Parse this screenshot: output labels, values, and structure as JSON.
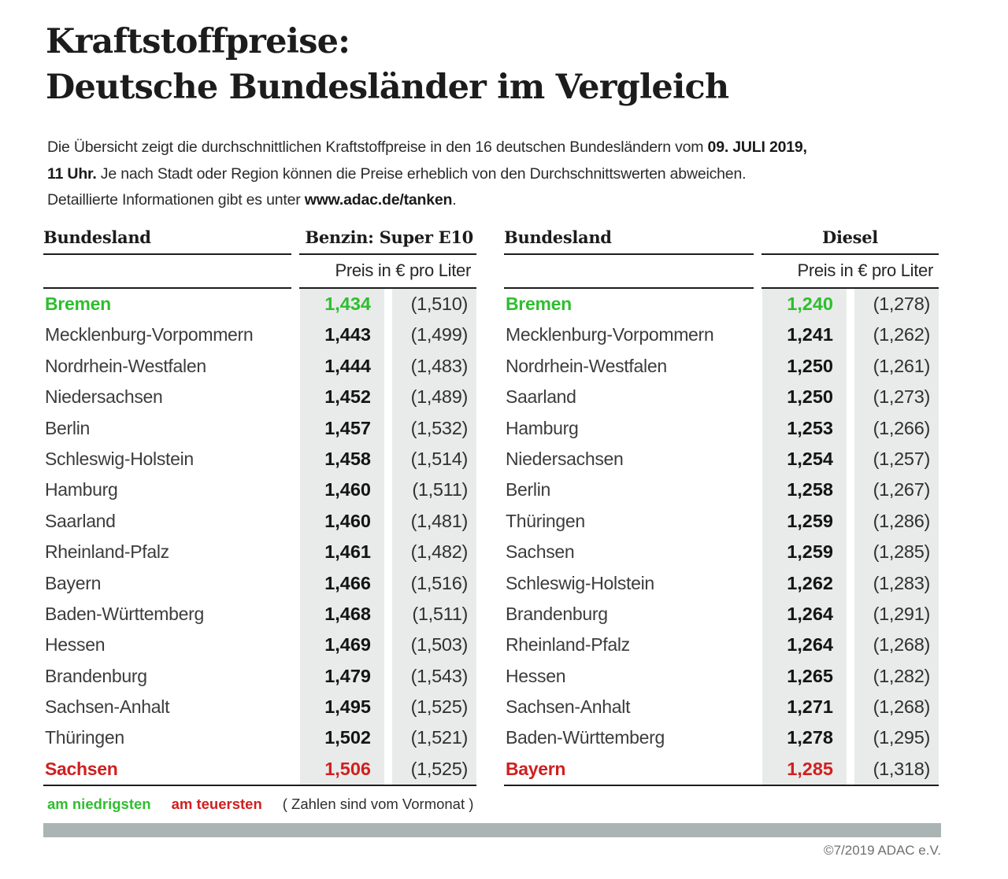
{
  "title": {
    "line1": "Kraftstoffpreise:",
    "line2": "Deutsche Bundesländer im Vergleich"
  },
  "intro": {
    "seg1": "Die Übersicht zeigt die durchschnittlichen Kraftstoffpreise in den 16 deutschen Bundesländern vom ",
    "seg2_bold": "09. JULI 2019,",
    "seg3_bold": "11 Uhr.",
    "seg4": " Je nach Stadt oder Region können die Preise erheblich von den Durchschnittswerten abweichen.",
    "seg5": "Detaillierte Informationen gibt es unter ",
    "seg6_bold": "www.adac.de/tanken",
    "seg7": "."
  },
  "tables": [
    {
      "bundesland_header": "Bundesland",
      "fuel_header": "Benzin:  Super E10",
      "unit_header": "Preis in € pro Liter",
      "rows": [
        {
          "name": "Bremen",
          "price": "1,434",
          "prev": "(1,510)",
          "highlight": "low"
        },
        {
          "name": "Mecklenburg-Vorpommern",
          "price": "1,443",
          "prev": "(1,499)",
          "highlight": ""
        },
        {
          "name": "Nordrhein-Westfalen",
          "price": "1,444",
          "prev": "(1,483)",
          "highlight": ""
        },
        {
          "name": "Niedersachsen",
          "price": "1,452",
          "prev": "(1,489)",
          "highlight": ""
        },
        {
          "name": "Berlin",
          "price": "1,457",
          "prev": "(1,532)",
          "highlight": ""
        },
        {
          "name": "Schleswig-Holstein",
          "price": "1,458",
          "prev": "(1,514)",
          "highlight": ""
        },
        {
          "name": "Hamburg",
          "price": "1,460",
          "prev": "(1,511)",
          "highlight": ""
        },
        {
          "name": "Saarland",
          "price": "1,460",
          "prev": "(1,481)",
          "highlight": ""
        },
        {
          "name": "Rheinland-Pfalz",
          "price": "1,461",
          "prev": "(1,482)",
          "highlight": ""
        },
        {
          "name": "Bayern",
          "price": "1,466",
          "prev": "(1,516)",
          "highlight": ""
        },
        {
          "name": "Baden-Württemberg",
          "price": "1,468",
          "prev": "(1,511)",
          "highlight": ""
        },
        {
          "name": "Hessen",
          "price": "1,469",
          "prev": "(1,503)",
          "highlight": ""
        },
        {
          "name": "Brandenburg",
          "price": "1,479",
          "prev": "(1,543)",
          "highlight": ""
        },
        {
          "name": "Sachsen-Anhalt",
          "price": "1,495",
          "prev": "(1,525)",
          "highlight": ""
        },
        {
          "name": "Thüringen",
          "price": "1,502",
          "prev": "(1,521)",
          "highlight": ""
        },
        {
          "name": "Sachsen",
          "price": "1,506",
          "prev": "(1,525)",
          "highlight": "high"
        }
      ]
    },
    {
      "bundesland_header": "Bundesland",
      "fuel_header": "Diesel",
      "unit_header": "Preis in € pro Liter",
      "rows": [
        {
          "name": "Bremen",
          "price": "1,240",
          "prev": "(1,278)",
          "highlight": "low"
        },
        {
          "name": "Mecklenburg-Vorpommern",
          "price": "1,241",
          "prev": "(1,262)",
          "highlight": ""
        },
        {
          "name": "Nordrhein-Westfalen",
          "price": "1,250",
          "prev": "(1,261)",
          "highlight": ""
        },
        {
          "name": "Saarland",
          "price": "1,250",
          "prev": "(1,273)",
          "highlight": ""
        },
        {
          "name": "Hamburg",
          "price": "1,253",
          "prev": "(1,266)",
          "highlight": ""
        },
        {
          "name": "Niedersachsen",
          "price": "1,254",
          "prev": "(1,257)",
          "highlight": ""
        },
        {
          "name": "Berlin",
          "price": "1,258",
          "prev": "(1,267)",
          "highlight": ""
        },
        {
          "name": "Thüringen",
          "price": "1,259",
          "prev": "(1,286)",
          "highlight": ""
        },
        {
          "name": "Sachsen",
          "price": "1,259",
          "prev": "(1,285)",
          "highlight": ""
        },
        {
          "name": "Schleswig-Holstein",
          "price": "1,262",
          "prev": "(1,283)",
          "highlight": ""
        },
        {
          "name": "Brandenburg",
          "price": "1,264",
          "prev": "(1,291)",
          "highlight": ""
        },
        {
          "name": "Rheinland-Pfalz",
          "price": "1,264",
          "prev": "(1,268)",
          "highlight": ""
        },
        {
          "name": "Hessen",
          "price": "1,265",
          "prev": "(1,282)",
          "highlight": ""
        },
        {
          "name": "Sachsen-Anhalt",
          "price": "1,271",
          "prev": "(1,268)",
          "highlight": ""
        },
        {
          "name": "Baden-Württemberg",
          "price": "1,278",
          "prev": "(1,295)",
          "highlight": ""
        },
        {
          "name": "Bayern",
          "price": "1,285",
          "prev": "(1,318)",
          "highlight": "high"
        }
      ]
    }
  ],
  "legend": {
    "lowest": "am niedrigsten",
    "highest": "am teuersten",
    "note": "( Zahlen sind vom Vormonat )"
  },
  "footer": {
    "copyright": "©7/2019 ADAC e.V."
  },
  "colors": {
    "green": "#2fbe2f",
    "red": "#d01f1f",
    "cell_bg": "#e8ebe9",
    "bar": "#a9b4b3"
  },
  "chart_data": [
    {
      "type": "table",
      "title": "Benzin: Super E10 — Preis in € pro Liter",
      "columns": [
        "Bundesland",
        "Preis",
        "Vormonat"
      ],
      "rows": [
        [
          "Bremen",
          1.434,
          1.51
        ],
        [
          "Mecklenburg-Vorpommern",
          1.443,
          1.499
        ],
        [
          "Nordrhein-Westfalen",
          1.444,
          1.483
        ],
        [
          "Niedersachsen",
          1.452,
          1.489
        ],
        [
          "Berlin",
          1.457,
          1.532
        ],
        [
          "Schleswig-Holstein",
          1.458,
          1.514
        ],
        [
          "Hamburg",
          1.46,
          1.511
        ],
        [
          "Saarland",
          1.46,
          1.481
        ],
        [
          "Rheinland-Pfalz",
          1.461,
          1.482
        ],
        [
          "Bayern",
          1.466,
          1.516
        ],
        [
          "Baden-Württemberg",
          1.468,
          1.511
        ],
        [
          "Hessen",
          1.469,
          1.503
        ],
        [
          "Brandenburg",
          1.479,
          1.543
        ],
        [
          "Sachsen-Anhalt",
          1.495,
          1.525
        ],
        [
          "Thüringen",
          1.502,
          1.521
        ],
        [
          "Sachsen",
          1.506,
          1.525
        ]
      ],
      "annotations": {
        "lowest": "Bremen",
        "highest": "Sachsen"
      }
    },
    {
      "type": "table",
      "title": "Diesel — Preis in € pro Liter",
      "columns": [
        "Bundesland",
        "Preis",
        "Vormonat"
      ],
      "rows": [
        [
          "Bremen",
          1.24,
          1.278
        ],
        [
          "Mecklenburg-Vorpommern",
          1.241,
          1.262
        ],
        [
          "Nordrhein-Westfalen",
          1.25,
          1.261
        ],
        [
          "Saarland",
          1.25,
          1.273
        ],
        [
          "Hamburg",
          1.253,
          1.266
        ],
        [
          "Niedersachsen",
          1.254,
          1.257
        ],
        [
          "Berlin",
          1.258,
          1.267
        ],
        [
          "Thüringen",
          1.259,
          1.286
        ],
        [
          "Sachsen",
          1.259,
          1.285
        ],
        [
          "Schleswig-Holstein",
          1.262,
          1.283
        ],
        [
          "Brandenburg",
          1.264,
          1.291
        ],
        [
          "Rheinland-Pfalz",
          1.264,
          1.268
        ],
        [
          "Hessen",
          1.265,
          1.282
        ],
        [
          "Sachsen-Anhalt",
          1.271,
          1.268
        ],
        [
          "Baden-Württemberg",
          1.278,
          1.295
        ],
        [
          "Bayern",
          1.285,
          1.318
        ]
      ],
      "annotations": {
        "lowest": "Bremen",
        "highest": "Bayern"
      }
    }
  ]
}
